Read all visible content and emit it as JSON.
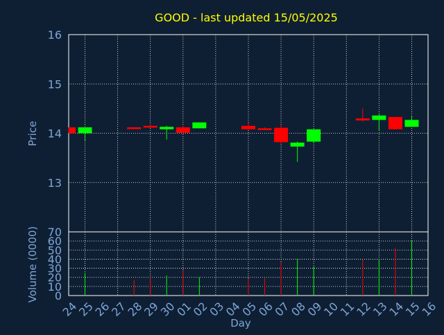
{
  "chart_data": [
    {
      "type": "candlestick",
      "title": "GOOD - last updated 15/05/2025",
      "ylabel": "Price",
      "ylim": [
        12,
        16
      ],
      "yticks": [
        "13",
        "14",
        "15",
        "16"
      ],
      "grid": true,
      "colors": {
        "up": "#00ff00",
        "down": "#ff0000",
        "title": "#ffff00",
        "axis_text": "#7ea6d8",
        "background": "#0f1f33"
      },
      "categories": [
        "24",
        "25",
        "26",
        "27",
        "28",
        "29",
        "30",
        "01",
        "02",
        "03",
        "04",
        "05",
        "06",
        "07",
        "08",
        "09",
        "10",
        "11",
        "12",
        "13",
        "14",
        "15",
        "16"
      ],
      "candles": [
        {
          "day": "24",
          "open": 14.12,
          "high": 14.12,
          "low": 14.0,
          "close": 14.0
        },
        {
          "day": "25",
          "open": 14.0,
          "high": 14.12,
          "low": 13.85,
          "close": 14.12
        },
        {
          "day": "28",
          "open": 14.12,
          "high": 14.12,
          "low": 14.08,
          "close": 14.09
        },
        {
          "day": "29",
          "open": 14.15,
          "high": 14.2,
          "low": 14.11,
          "close": 14.13
        },
        {
          "day": "30",
          "open": 14.08,
          "high": 14.15,
          "low": 13.87,
          "close": 14.13
        },
        {
          "day": "01",
          "open": 14.12,
          "high": 14.15,
          "low": 14.0,
          "close": 14.01
        },
        {
          "day": "02",
          "open": 14.1,
          "high": 14.22,
          "low": 14.1,
          "close": 14.22
        },
        {
          "day": "05",
          "open": 14.15,
          "high": 14.22,
          "low": 14.07,
          "close": 14.08
        },
        {
          "day": "06",
          "open": 14.1,
          "high": 14.12,
          "low": 14.07,
          "close": 14.09
        },
        {
          "day": "07",
          "open": 14.11,
          "high": 14.18,
          "low": 13.77,
          "close": 13.82
        },
        {
          "day": "08",
          "open": 13.73,
          "high": 13.83,
          "low": 13.42,
          "close": 13.81
        },
        {
          "day": "09",
          "open": 13.83,
          "high": 14.08,
          "low": 13.81,
          "close": 14.08
        },
        {
          "day": "12",
          "open": 14.3,
          "high": 14.5,
          "low": 14.24,
          "close": 14.26
        },
        {
          "day": "13",
          "open": 14.27,
          "high": 14.38,
          "low": 14.05,
          "close": 14.36
        },
        {
          "day": "14",
          "open": 14.33,
          "high": 14.33,
          "low": 14.08,
          "close": 14.08
        },
        {
          "day": "15",
          "open": 14.13,
          "high": 14.35,
          "low": 14.13,
          "close": 14.27
        }
      ]
    },
    {
      "type": "bar",
      "xlabel": "Day",
      "ylabel": "Volume (0000)",
      "ylim": [
        0,
        70
      ],
      "yticks": [
        "0",
        "10",
        "20",
        "30",
        "40",
        "50",
        "60",
        "70"
      ],
      "grid": true,
      "categories": [
        "24",
        "25",
        "26",
        "27",
        "28",
        "29",
        "30",
        "01",
        "02",
        "03",
        "04",
        "05",
        "06",
        "07",
        "08",
        "09",
        "10",
        "11",
        "12",
        "13",
        "14",
        "15",
        "16"
      ],
      "bars": [
        {
          "day": "25",
          "value": 25,
          "direction": "up"
        },
        {
          "day": "28",
          "value": 17,
          "direction": "down"
        },
        {
          "day": "29",
          "value": 20,
          "direction": "down"
        },
        {
          "day": "30",
          "value": 22,
          "direction": "up"
        },
        {
          "day": "01",
          "value": 28,
          "direction": "down"
        },
        {
          "day": "02",
          "value": 20,
          "direction": "up"
        },
        {
          "day": "05",
          "value": 19,
          "direction": "down"
        },
        {
          "day": "06",
          "value": 19,
          "direction": "down"
        },
        {
          "day": "07",
          "value": 37,
          "direction": "down"
        },
        {
          "day": "08",
          "value": 40,
          "direction": "up"
        },
        {
          "day": "09",
          "value": 32,
          "direction": "up"
        },
        {
          "day": "12",
          "value": 40,
          "direction": "down"
        },
        {
          "day": "13",
          "value": 40,
          "direction": "up"
        },
        {
          "day": "14",
          "value": 52,
          "direction": "down"
        },
        {
          "day": "15",
          "value": 60,
          "direction": "up"
        }
      ]
    }
  ]
}
